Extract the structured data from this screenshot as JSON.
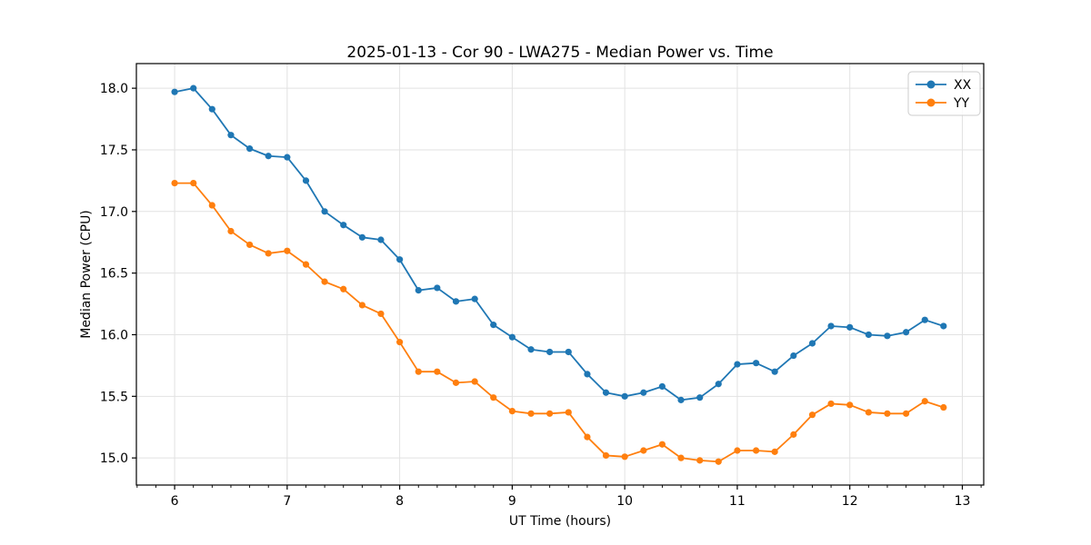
{
  "chart_data": {
    "type": "line",
    "title": "2025-01-13 - Cor 90 - LWA275 - Median Power vs. Time",
    "xlabel": "UT Time (hours)",
    "ylabel": "Median Power (CPU)",
    "xlim": [
      5.66,
      13.19
    ],
    "ylim": [
      14.78,
      18.2
    ],
    "xtick_values": [
      6,
      7,
      8,
      9,
      10,
      11,
      12,
      13
    ],
    "xtick_labels": [
      "6",
      "7",
      "8",
      "9",
      "10",
      "11",
      "12",
      "13"
    ],
    "ytick_values": [
      15.0,
      15.5,
      16.0,
      16.5,
      17.0,
      17.5,
      18.0
    ],
    "ytick_labels": [
      "15.0",
      "15.5",
      "16.0",
      "16.5",
      "17.0",
      "17.5",
      "18.0"
    ],
    "x_minor_step_hours": 0.1667,
    "grid": true,
    "grid_color": "#e2e2e2",
    "legend_position": "upper right",
    "x": [
      6.0,
      6.167,
      6.333,
      6.5,
      6.667,
      6.833,
      7.0,
      7.167,
      7.333,
      7.5,
      7.667,
      7.833,
      8.0,
      8.167,
      8.333,
      8.5,
      8.667,
      8.833,
      9.0,
      9.167,
      9.333,
      9.5,
      9.667,
      9.833,
      10.0,
      10.167,
      10.333,
      10.5,
      10.667,
      10.833,
      11.0,
      11.167,
      11.333,
      11.5,
      11.667,
      11.833,
      12.0,
      12.167,
      12.333,
      12.5,
      12.667,
      12.833
    ],
    "series": [
      {
        "name": "XX",
        "color": "#1f77b4",
        "values": [
          17.97,
          18.0,
          17.83,
          17.62,
          17.51,
          17.45,
          17.44,
          17.25,
          17.0,
          16.89,
          16.79,
          16.77,
          16.61,
          16.36,
          16.38,
          16.27,
          16.29,
          16.08,
          15.98,
          15.88,
          15.86,
          15.86,
          15.68,
          15.53,
          15.5,
          15.53,
          15.58,
          15.47,
          15.49,
          15.6,
          15.76,
          15.77,
          15.7,
          15.83,
          15.93,
          16.07,
          16.06,
          16.0,
          15.99,
          16.02,
          16.12,
          16.07
        ]
      },
      {
        "name": "YY",
        "color": "#ff7f0e",
        "values": [
          17.23,
          17.23,
          17.05,
          16.84,
          16.73,
          16.66,
          16.68,
          16.57,
          16.43,
          16.37,
          16.24,
          16.17,
          15.94,
          15.7,
          15.7,
          15.61,
          15.62,
          15.49,
          15.38,
          15.36,
          15.36,
          15.37,
          15.17,
          15.02,
          15.01,
          15.06,
          15.11,
          15.0,
          14.98,
          14.97,
          15.06,
          15.06,
          15.05,
          15.19,
          15.35,
          15.44,
          15.43,
          15.37,
          15.36,
          15.36,
          15.46,
          15.41
        ]
      }
    ]
  }
}
